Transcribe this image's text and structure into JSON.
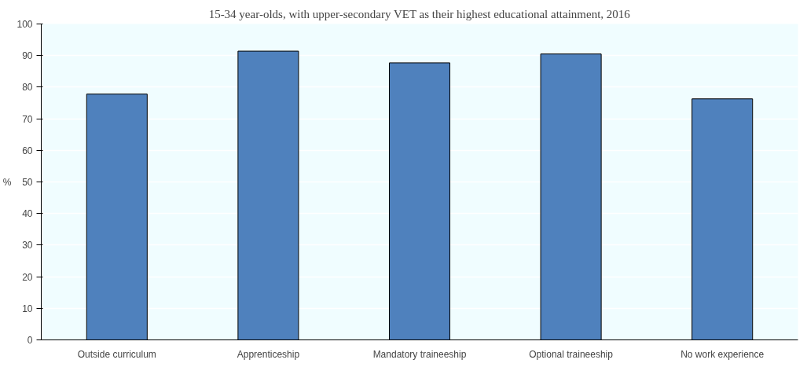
{
  "chart_data": {
    "type": "bar",
    "title": "15-34 year-olds, with upper-secondary VET as their highest educational attainment, 2016",
    "ylabel": "%",
    "categories": [
      "Outside curriculum",
      "Apprenticeship",
      "Mandatory traineeship",
      "Optional traineeship",
      "No work experience"
    ],
    "values": [
      77.8,
      91.4,
      87.7,
      90.5,
      76.3
    ],
    "color": "#4f81bd",
    "ylim": [
      0,
      100
    ],
    "yticks": [
      0,
      10,
      20,
      30,
      40,
      50,
      60,
      70,
      80,
      90,
      100
    ],
    "grid": "y"
  }
}
